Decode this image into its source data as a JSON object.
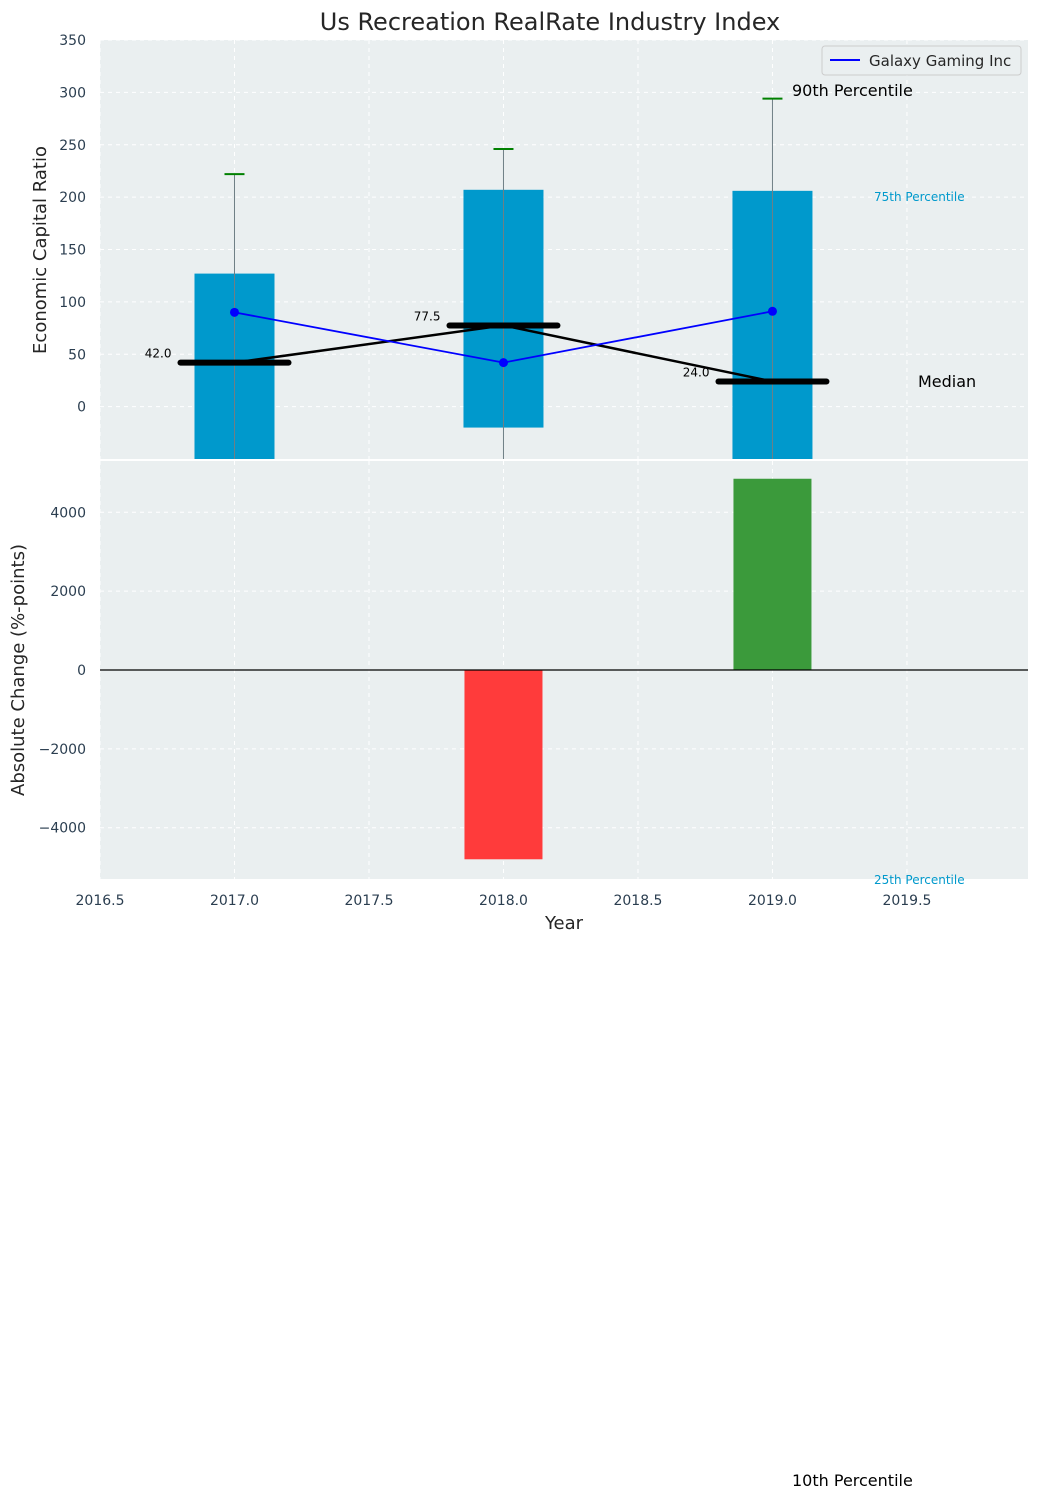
{
  "chart_data": [
    {
      "type": "bar",
      "panel": "top",
      "title": "Us Recreation RealRate Industry Index",
      "ylabel": "Economic Capital Ratio",
      "xlabel": "",
      "ylim": [
        -50,
        350
      ],
      "xlim": [
        2016.5,
        2019.95
      ],
      "yticks": [
        0,
        50,
        100,
        150,
        200,
        250,
        300,
        350
      ],
      "grid": true,
      "legend": {
        "position": "top-right",
        "entries": [
          "Galaxy Gaming Inc"
        ]
      },
      "colors": {
        "iqr": "#0099cc",
        "median": "#000000",
        "company": "#0000ff",
        "whisker": "#008000",
        "background": "#eaeff0"
      },
      "x": [
        2017,
        2018,
        2019
      ],
      "percentile_25": [
        -50,
        -20,
        -50
      ],
      "percentile_75": [
        127,
        207,
        206
      ],
      "percentile_90": [
        222,
        246,
        294
      ],
      "median": [
        42.0,
        77.5,
        24.0
      ],
      "median_labels": [
        "42.0",
        "77.5",
        "24.0"
      ],
      "series": [
        {
          "name": "Galaxy Gaming Inc",
          "values": [
            90,
            42,
            91
          ]
        }
      ],
      "annotations": {
        "p90": "90th Percentile",
        "p75": "75th Percentile",
        "median": "Median",
        "p25": "25th Percentile",
        "p10": "10th Percentile"
      }
    },
    {
      "type": "bar",
      "panel": "bottom",
      "ylabel": "Absolute Change (%-points)",
      "xlabel": "Year",
      "ylim": [
        -5300,
        5300
      ],
      "xlim": [
        2016.5,
        2019.95
      ],
      "yticks": [
        -4000,
        -2000,
        0,
        2000,
        4000
      ],
      "xticks": [
        2016.5,
        2017.0,
        2017.5,
        2018.0,
        2018.5,
        2019.0,
        2019.5
      ],
      "grid": true,
      "colors": {
        "negative": "#ff3b3b",
        "positive": "#3b9a3b"
      },
      "x": [
        2018,
        2019
      ],
      "values": [
        -4800,
        4850
      ]
    }
  ]
}
